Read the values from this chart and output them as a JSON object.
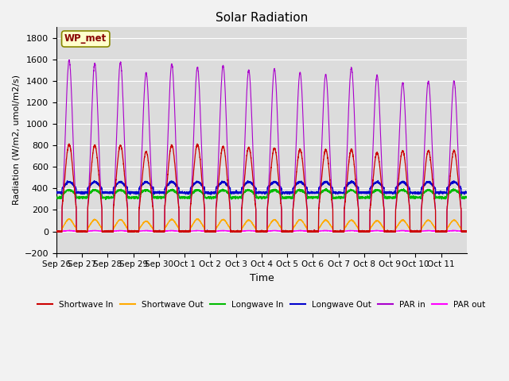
{
  "title": "Solar Radiation",
  "ylabel": "Radiation (W/m2, umol/m2/s)",
  "xlabel": "Time",
  "ylim": [
    -200,
    1900
  ],
  "yticks": [
    -200,
    0,
    200,
    400,
    600,
    800,
    1000,
    1200,
    1400,
    1600,
    1800
  ],
  "bg_color": "#dcdcdc",
  "watermark": "WP_met",
  "n_days": 16,
  "day_labels": [
    "Sep 26",
    "Sep 27",
    "Sep 28",
    "Sep 29",
    "Sep 30",
    "Oct 1",
    "Oct 2",
    "Oct 3",
    "Oct 4",
    "Oct 5",
    "Oct 6",
    "Oct 7",
    "Oct 8",
    "Oct 9",
    "Oct 10",
    "Oct 11"
  ],
  "shortwave_in_peaks": [
    810,
    800,
    800,
    740,
    800,
    810,
    790,
    780,
    775,
    760,
    760,
    760,
    730,
    750,
    750,
    750
  ],
  "shortwave_out_peaks": [
    115,
    110,
    110,
    95,
    112,
    115,
    110,
    105,
    108,
    108,
    105,
    105,
    100,
    105,
    105,
    105
  ],
  "longwave_in_base": 315,
  "longwave_in_day_bump": 70,
  "longwave_out_base": 360,
  "longwave_out_day_bump": 100,
  "par_in_peaks": [
    1590,
    1560,
    1570,
    1470,
    1555,
    1525,
    1540,
    1500,
    1510,
    1475,
    1460,
    1520,
    1450,
    1380,
    1395,
    1395
  ],
  "colors": {
    "shortwave_in": "#cc0000",
    "shortwave_out": "#ffaa00",
    "longwave_in": "#00bb00",
    "longwave_out": "#0000cc",
    "par_in": "#aa00cc",
    "par_out": "#ff00ff"
  },
  "legend_labels": [
    "Shortwave In",
    "Shortwave Out",
    "Longwave In",
    "Longwave Out",
    "PAR in",
    "PAR out"
  ]
}
